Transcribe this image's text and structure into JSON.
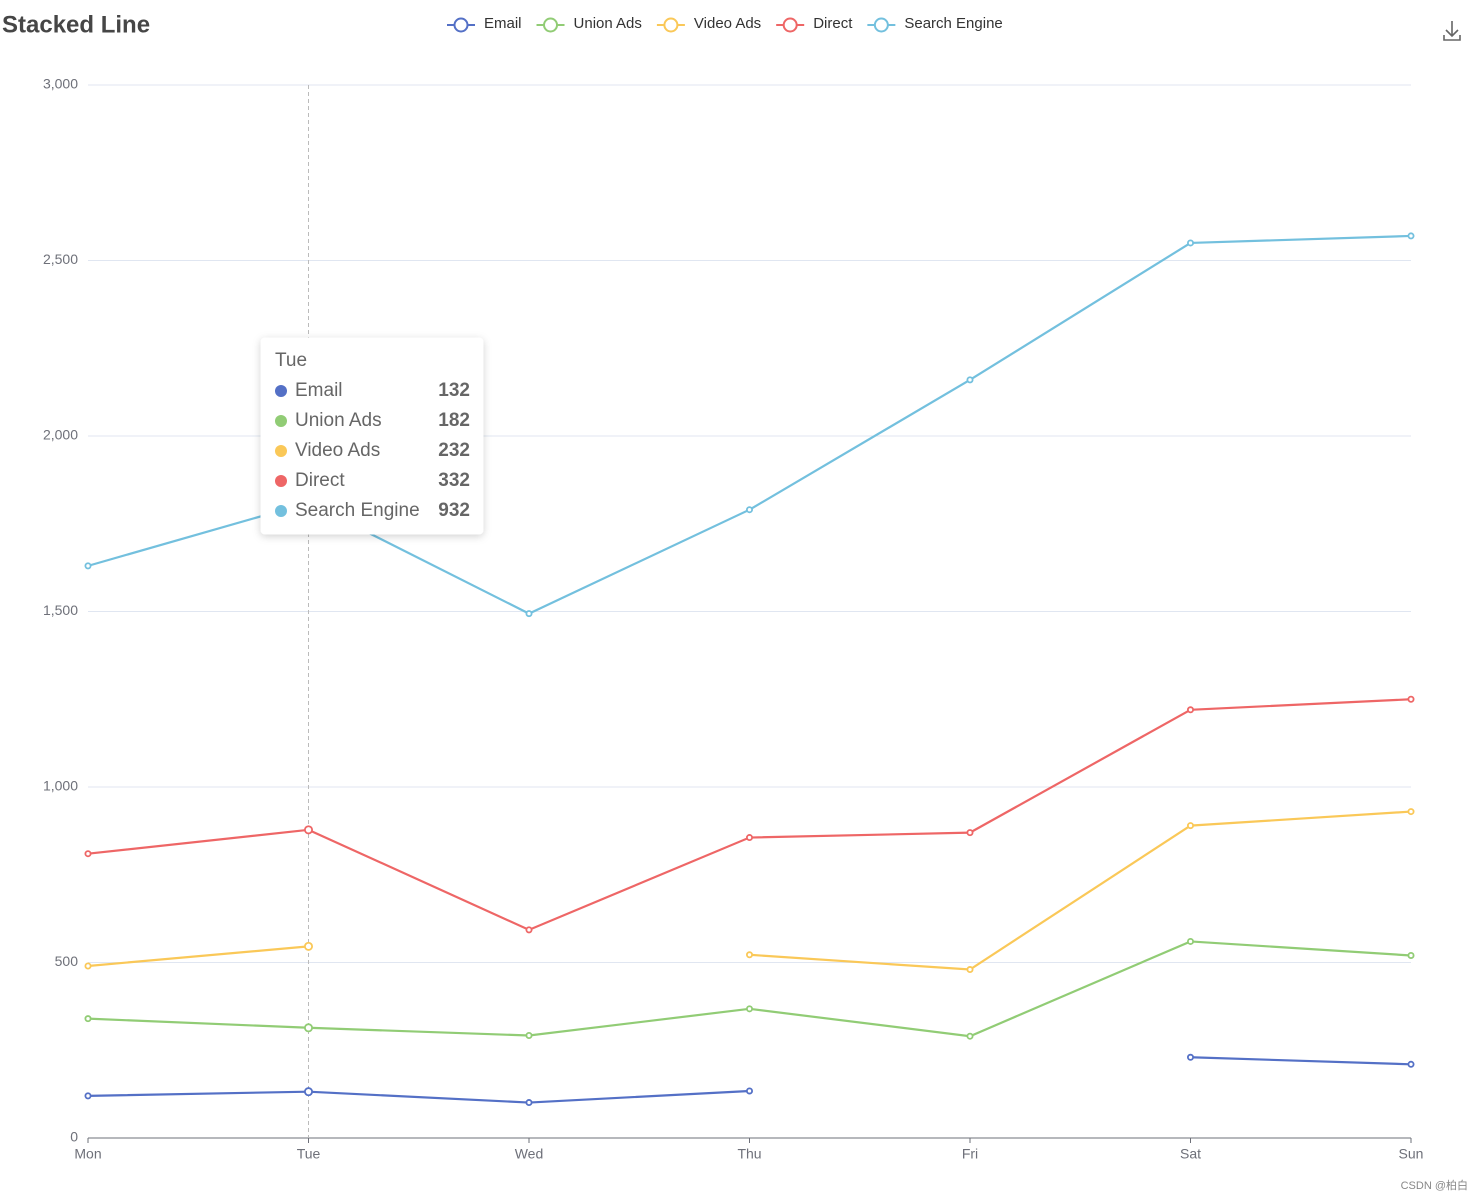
{
  "chart_data": {
    "type": "line",
    "stacked": true,
    "title": "Stacked Line",
    "categories": [
      "Mon",
      "Tue",
      "Wed",
      "Thu",
      "Fri",
      "Sat",
      "Sun"
    ],
    "series": [
      {
        "name": "Email",
        "color": "#5470c6",
        "values": [
          120,
          132,
          101,
          134,
          null,
          230,
          210
        ]
      },
      {
        "name": "Union Ads",
        "color": "#91cc75",
        "values": [
          220,
          182,
          191,
          234,
          290,
          330,
          310
        ]
      },
      {
        "name": "Video Ads",
        "color": "#fac858",
        "values": [
          150,
          232,
          null,
          154,
          190,
          330,
          410
        ]
      },
      {
        "name": "Direct",
        "color": "#ee6666",
        "values": [
          320,
          332,
          301,
          334,
          390,
          330,
          320
        ]
      },
      {
        "name": "Search Engine",
        "color": "#73c0de",
        "values": [
          820,
          932,
          901,
          934,
          1290,
          1330,
          1320
        ]
      }
    ],
    "ylim": [
      0,
      3000
    ],
    "yticks": [
      0,
      500,
      {
        "value": 1000,
        "label": "1,000"
      },
      {
        "value": 1500,
        "label": "1,500"
      },
      {
        "value": 2000,
        "label": "2,000"
      },
      {
        "value": 2500,
        "label": "2,500"
      },
      {
        "value": 3000,
        "label": "3,000"
      }
    ],
    "grid": true,
    "legend": "top",
    "tooltip_index": 1,
    "watermark": "CSDN @柏白"
  }
}
